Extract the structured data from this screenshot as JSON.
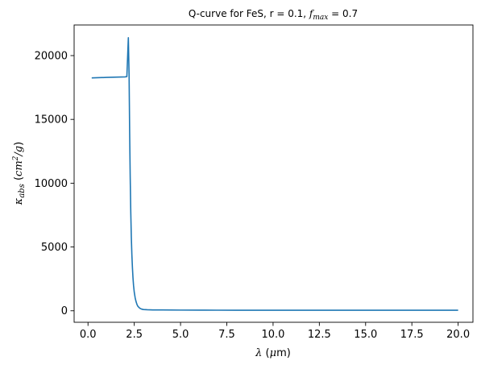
{
  "chart_data": {
    "type": "line",
    "title": {
      "prefix": "Q-curve for FeS, r = 0.1, ",
      "f_symbol": "f",
      "f_subscript": "max",
      "suffix": " = 0.7"
    },
    "xlabel": {
      "symbol": "λ",
      "unit_open": " (",
      "unit_symbol": "μ",
      "unit_rest": "m",
      "unit_close": ")"
    },
    "ylabel": {
      "symbol": "κ",
      "subscript": "abs",
      "unit_open": " (",
      "unit_base": "cm",
      "unit_sup": "2",
      "unit_slash": "/g",
      "unit_close": ")"
    },
    "xlim": [
      -0.75,
      20.8
    ],
    "ylim": [
      -900,
      22400
    ],
    "xticks": [
      "0.0",
      "2.5",
      "5.0",
      "7.5",
      "10.0",
      "12.5",
      "15.0",
      "17.5",
      "20.0"
    ],
    "xtick_values": [
      0,
      2.5,
      5,
      7.5,
      10,
      12.5,
      15,
      17.5,
      20
    ],
    "yticks": [
      "0",
      "5000",
      "10000",
      "15000",
      "20000"
    ],
    "ytick_values": [
      0,
      5000,
      10000,
      15000,
      20000
    ],
    "grid": false,
    "series": [
      {
        "color": "#1f77b4",
        "x": [
          0.2,
          1.0,
          2.0,
          2.1,
          2.18,
          2.22,
          2.25,
          2.28,
          2.31,
          2.34,
          2.37,
          2.4,
          2.43,
          2.46,
          2.5,
          2.55,
          2.6,
          2.65,
          2.7,
          2.8,
          2.9,
          3.0,
          3.2,
          3.5,
          4.0,
          5.0,
          6.0,
          7.0,
          8.0,
          10.0,
          12.0,
          15.0,
          18.0,
          20.0
        ],
        "y": [
          18250,
          18290,
          18330,
          18350,
          21400,
          18500,
          14000,
          10500,
          7800,
          5800,
          4400,
          3400,
          2600,
          2000,
          1450,
          1000,
          700,
          480,
          340,
          200,
          130,
          100,
          80,
          70,
          65,
          55,
          50,
          48,
          46,
          44,
          43,
          42,
          41,
          40
        ]
      }
    ]
  }
}
